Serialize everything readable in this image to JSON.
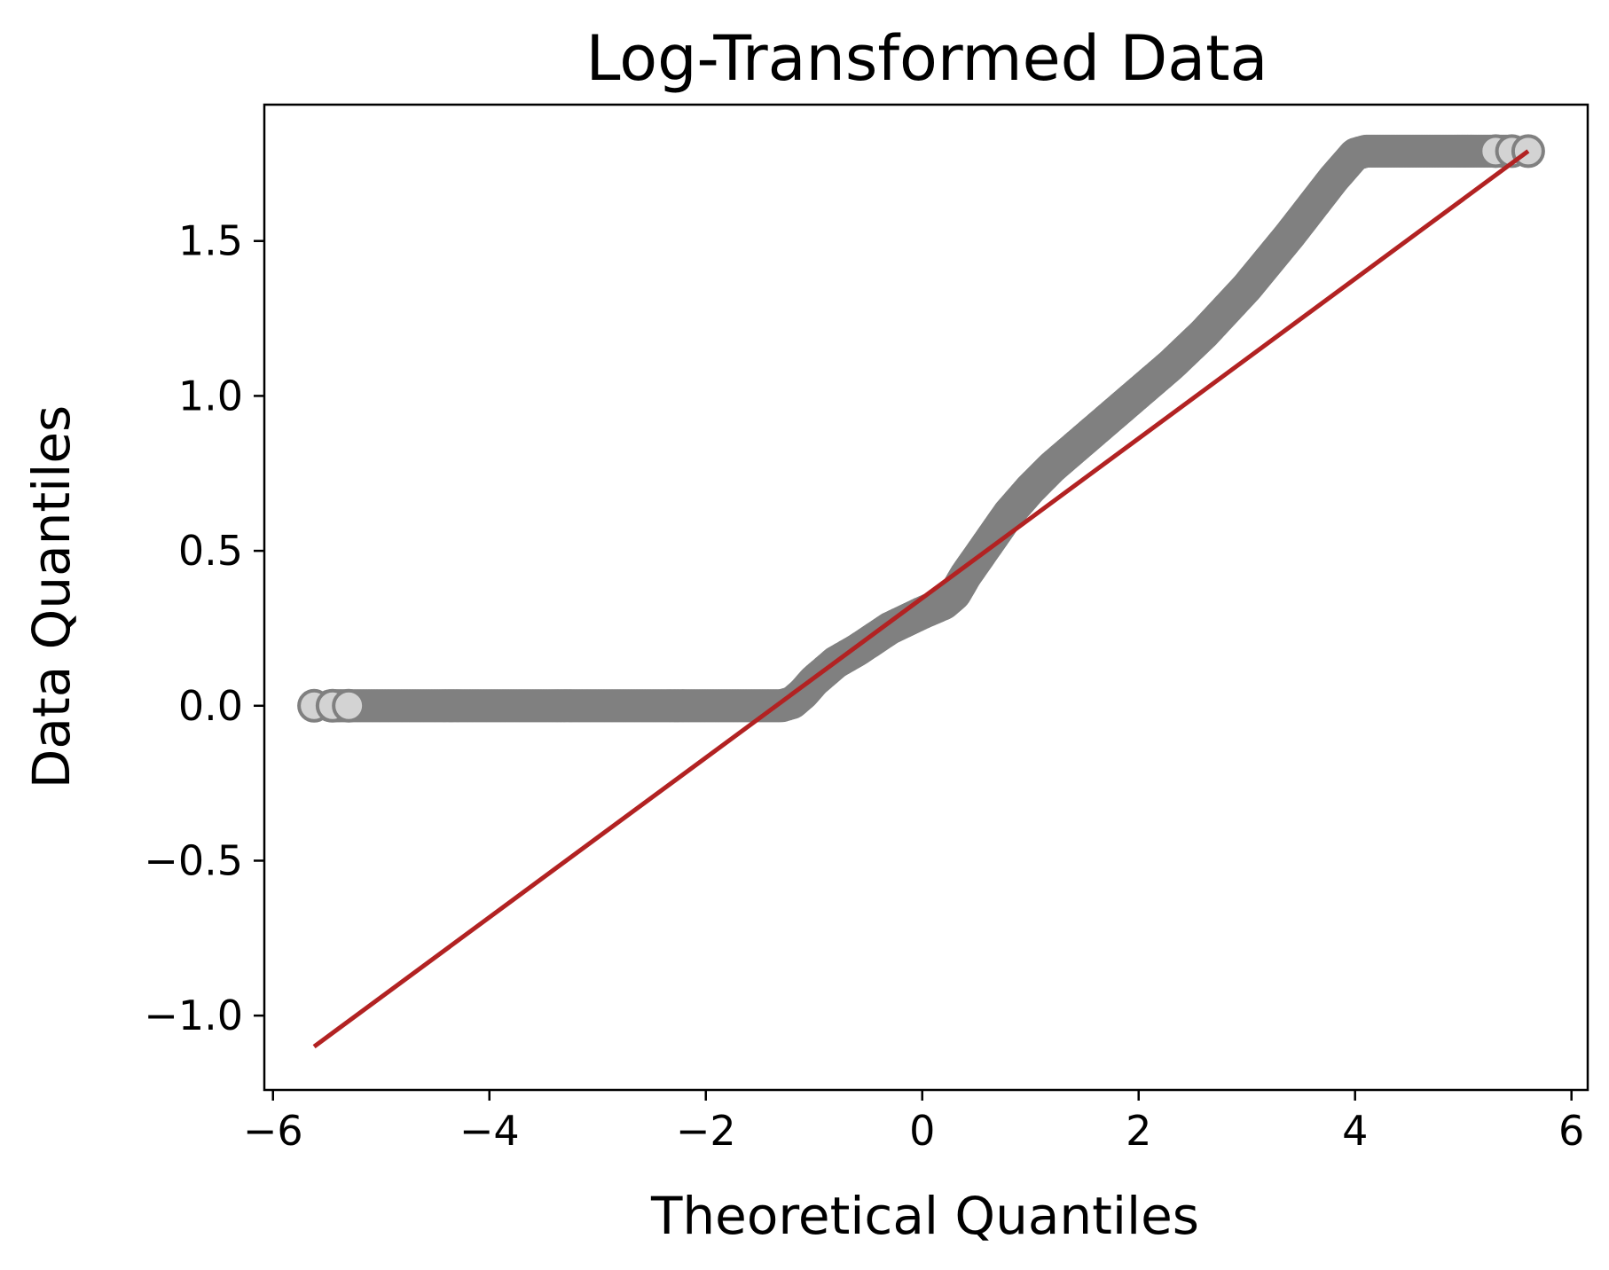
{
  "chart_data": {
    "type": "scatter",
    "title": "Log-Transformed Data",
    "xlabel": "Theoretical Quantiles",
    "ylabel": "Data Quantiles",
    "xlim": [
      -6.08,
      6.15
    ],
    "ylim": [
      -1.24,
      1.94
    ],
    "xticks": [
      -6,
      -4,
      -2,
      0,
      2,
      4,
      6
    ],
    "xtick_labels": [
      "−6",
      "−4",
      "−2",
      "0",
      "2",
      "4",
      "6"
    ],
    "yticks": [
      -1.0,
      -0.5,
      0.0,
      0.5,
      1.0,
      1.5
    ],
    "ytick_labels": [
      "−1.0",
      "−0.5",
      "0.0",
      "0.5",
      "1.0",
      "1.5"
    ],
    "grid": false,
    "colors": {
      "points": "#808080",
      "point_edge": "#808080",
      "extreme_fill": "#d3d3d3",
      "reference_line": "#b22222"
    },
    "series": [
      {
        "type": "scatter",
        "x": [
          -5.62,
          -5.45,
          -5.3,
          -5.0,
          -4.5,
          -4.0,
          -3.5,
          -3.0,
          -2.5,
          -2.0,
          -1.6,
          -1.3,
          -1.2,
          -1.1,
          -1.0,
          -0.9,
          -0.8,
          -0.6,
          -0.3,
          0.0,
          0.2,
          0.3,
          0.4,
          0.6,
          0.8,
          1.0,
          1.2,
          1.5,
          1.8,
          2.0,
          2.3,
          2.6,
          3.0,
          3.4,
          3.8,
          4.0,
          4.1,
          4.5,
          5.0,
          5.3,
          5.45,
          5.6
        ],
        "y": [
          0.0,
          0.0,
          0.0,
          0.0,
          0.0,
          0.0,
          0.0,
          0.0,
          0.0,
          0.0,
          0.0,
          0.0,
          0.01,
          0.04,
          0.08,
          0.11,
          0.14,
          0.18,
          0.25,
          0.3,
          0.33,
          0.36,
          0.42,
          0.52,
          0.62,
          0.7,
          0.77,
          0.86,
          0.95,
          1.01,
          1.1,
          1.2,
          1.35,
          1.52,
          1.7,
          1.78,
          1.79,
          1.79,
          1.79,
          1.79,
          1.79,
          1.79
        ]
      },
      {
        "type": "line",
        "x": [
          -5.62,
          5.6
        ],
        "y": [
          -1.1,
          1.79
        ]
      }
    ]
  }
}
